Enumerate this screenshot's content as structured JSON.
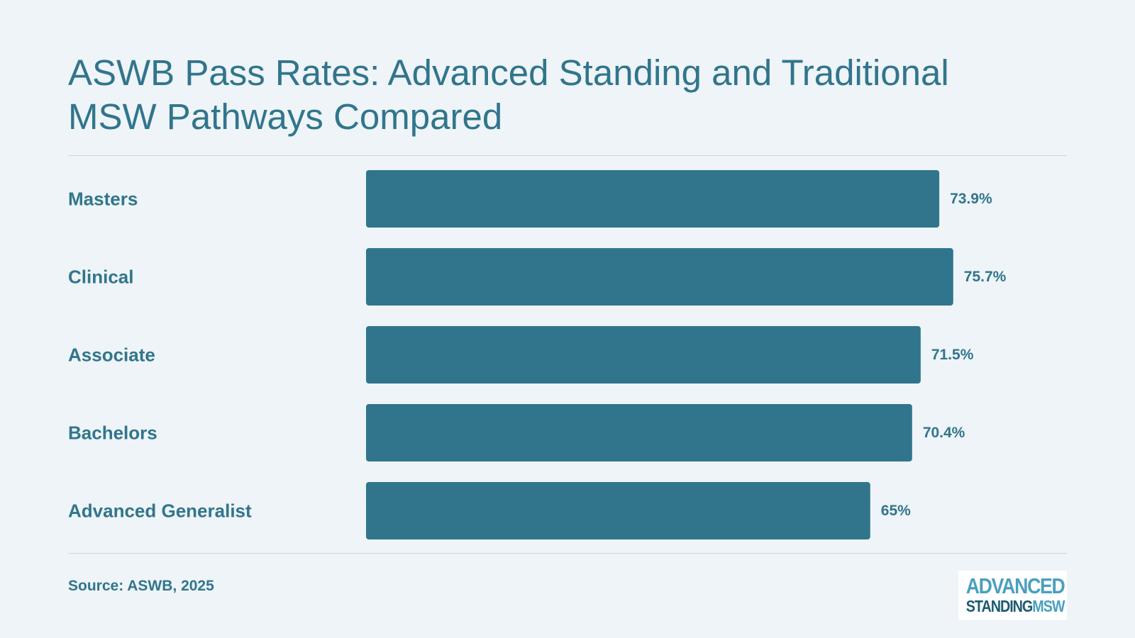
{
  "chart_data": {
    "type": "bar",
    "orientation": "horizontal",
    "title": "ASWB Pass Rates: Advanced Standing and Traditional MSW Pathways Compared",
    "categories": [
      "Masters",
      "Clinical",
      "Associate",
      "Bachelors",
      "Advanced Generalist"
    ],
    "values": [
      73.9,
      75.7,
      71.5,
      70.4,
      65
    ],
    "value_labels": [
      "73.9%",
      "75.7%",
      "71.5%",
      "70.4%",
      "65%"
    ],
    "unit": "%",
    "xlim": [
      0,
      100
    ],
    "grid": false,
    "legend": "none",
    "bar_color": "#31758C",
    "source": "Source: ASWB, 2025"
  },
  "logo": {
    "line1": "ADVANCED",
    "line2_a": "STANDING",
    "line2_b": "MSW"
  },
  "colors": {
    "background": "#EEF4F7",
    "accent": "#31758C",
    "logo_light": "#4AA0BD",
    "logo_dark": "#1D5B6F"
  }
}
